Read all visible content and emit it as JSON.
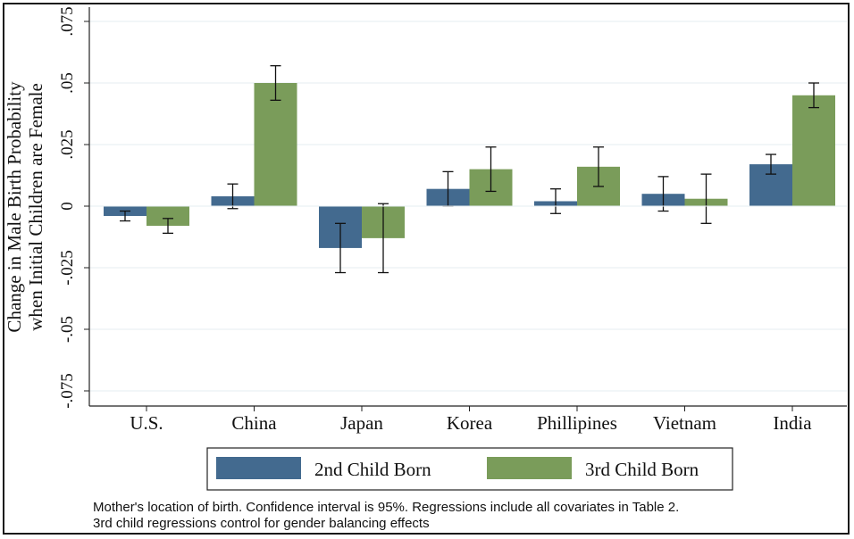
{
  "chart_data": {
    "type": "bar",
    "categories": [
      "U.S.",
      "China",
      "Japan",
      "Korea",
      "Phillipines",
      "Vietnam",
      "India"
    ],
    "series": [
      {
        "name": "2nd Child Born",
        "color": "#436a8f",
        "values": [
          -0.004,
          0.004,
          -0.017,
          0.007,
          0.002,
          0.005,
          0.017
        ],
        "ci_low": [
          -0.006,
          -0.001,
          -0.027,
          0.0,
          -0.003,
          -0.002,
          0.013
        ],
        "ci_high": [
          -0.002,
          0.009,
          -0.007,
          0.014,
          0.007,
          0.012,
          0.021
        ]
      },
      {
        "name": "3rd Child Born",
        "color": "#7a9c5a",
        "values": [
          -0.008,
          0.05,
          -0.013,
          0.015,
          0.016,
          0.003,
          0.045
        ],
        "ci_low": [
          -0.011,
          0.043,
          -0.027,
          0.006,
          0.008,
          -0.007,
          0.04
        ],
        "ci_high": [
          -0.005,
          0.057,
          0.001,
          0.024,
          0.024,
          0.013,
          0.05
        ]
      }
    ],
    "ylim": [
      -0.08,
      0.08
    ],
    "yticks": [
      0.075,
      0.05,
      0.025,
      0,
      -0.025,
      -0.05,
      -0.075
    ],
    "ytick_labels": [
      ".075",
      ".05",
      ".025",
      "0",
      "-.025",
      "-.05",
      "-.075"
    ],
    "ylabel_line1": "Change in Male Birth Probability",
    "ylabel_line2": "when Initial Children are Female",
    "xlabel": "",
    "legend_position": "bottom",
    "grid": true
  },
  "note": {
    "line1": "Mother's location of birth. Confidence interval is 95%. Regressions include all covariates in Table 2.",
    "line2": "3rd child regressions control for gender balancing effects"
  }
}
